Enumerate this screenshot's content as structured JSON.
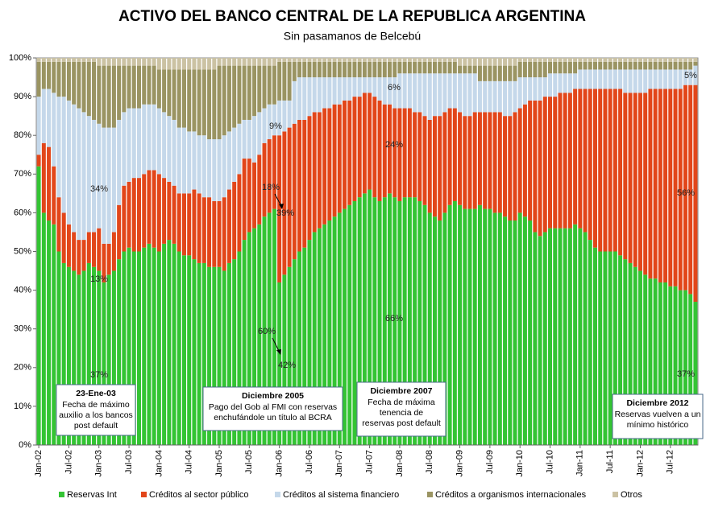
{
  "chart_data": {
    "type": "stacked_bar",
    "title": "ACTIVO DEL BANCO CENTRAL DE LA REPUBLICA ARGENTINA",
    "subtitle": "Sin pasamanos de Belcebú",
    "categories": [
      "Jan-02",
      null,
      null,
      null,
      null,
      null,
      "Jul-02",
      null,
      null,
      null,
      null,
      null,
      "Jan-03",
      null,
      null,
      null,
      null,
      null,
      "Jul-03",
      null,
      null,
      null,
      null,
      null,
      "Jan-04",
      null,
      null,
      null,
      null,
      null,
      "Jul-04",
      null,
      null,
      null,
      null,
      null,
      "Jan-05",
      null,
      null,
      null,
      null,
      null,
      "Jul-05",
      null,
      null,
      null,
      null,
      null,
      "Jan-06",
      null,
      null,
      null,
      null,
      null,
      "Jul-06",
      null,
      null,
      null,
      null,
      null,
      "Jan-07",
      null,
      null,
      null,
      null,
      null,
      "Jul-07",
      null,
      null,
      null,
      null,
      null,
      "Jan-08",
      null,
      null,
      null,
      null,
      null,
      "Jul-08",
      null,
      null,
      null,
      null,
      null,
      "Jan-09",
      null,
      null,
      null,
      null,
      null,
      "Jul-09",
      null,
      null,
      null,
      null,
      null,
      "Jan-10",
      null,
      null,
      null,
      null,
      null,
      "Jul-10",
      null,
      null,
      null,
      null,
      null,
      "Jan-11",
      null,
      null,
      null,
      null,
      null,
      "Jul-11",
      null,
      null,
      null,
      null,
      null,
      "Jan-12",
      null,
      null,
      null,
      null,
      null,
      "Jul-12",
      null,
      null,
      null,
      null,
      null
    ],
    "series": [
      {
        "name": "Reservas Int",
        "color": "#33c433",
        "values": [
          72,
          60,
          58,
          57,
          50,
          47,
          46,
          45,
          44,
          45,
          47,
          46,
          45,
          42,
          44,
          45,
          48,
          50,
          51,
          50,
          50,
          51,
          52,
          51,
          50,
          52,
          53,
          52,
          50,
          49,
          49,
          48,
          47,
          47,
          46,
          46,
          46,
          45,
          47,
          48,
          50,
          53,
          55,
          56,
          57,
          59,
          60,
          61,
          42,
          44,
          46,
          48,
          50,
          51,
          53,
          55,
          56,
          57,
          58,
          59,
          60,
          61,
          62,
          63,
          64,
          65,
          66,
          64,
          63,
          64,
          65,
          64,
          63,
          64,
          64,
          64,
          63,
          62,
          60,
          59,
          58,
          60,
          62,
          63,
          62,
          61,
          61,
          61,
          62,
          61,
          61,
          60,
          60,
          59,
          58,
          58,
          60,
          59,
          58,
          55,
          54,
          55,
          56,
          56,
          56,
          56,
          56,
          57,
          56,
          55,
          53,
          51,
          50,
          50,
          50,
          50,
          49,
          48,
          47,
          46,
          45,
          44,
          43,
          43,
          42,
          42,
          41,
          41,
          40,
          40,
          39,
          37
        ]
      },
      {
        "name": "Créditos al sector público",
        "color": "#e2461a",
        "values": [
          3,
          18,
          19,
          15,
          14,
          13,
          11,
          10,
          9,
          8,
          8,
          9,
          11,
          10,
          8,
          10,
          14,
          17,
          17,
          19,
          19,
          19,
          19,
          20,
          20,
          17,
          15,
          15,
          15,
          16,
          16,
          18,
          18,
          17,
          18,
          17,
          17,
          19,
          19,
          20,
          20,
          21,
          19,
          17,
          18,
          19,
          19,
          19,
          38,
          37,
          36,
          35,
          34,
          33,
          32,
          31,
          30,
          30,
          29,
          29,
          28,
          28,
          27,
          27,
          26,
          26,
          25,
          26,
          26,
          24,
          23,
          23,
          24,
          23,
          23,
          22,
          23,
          23,
          24,
          26,
          27,
          26,
          25,
          24,
          24,
          24,
          24,
          25,
          24,
          25,
          25,
          26,
          26,
          26,
          27,
          28,
          27,
          29,
          31,
          34,
          35,
          35,
          34,
          34,
          35,
          35,
          35,
          35,
          36,
          37,
          39,
          41,
          42,
          42,
          42,
          42,
          43,
          43,
          44,
          45,
          46,
          47,
          49,
          49,
          50,
          50,
          51,
          51,
          52,
          53,
          54,
          56
        ]
      },
      {
        "name": "Créditos al sistema financiero",
        "color": "#c5d8ea",
        "values": [
          15,
          14,
          15,
          19,
          26,
          30,
          32,
          33,
          34,
          33,
          30,
          29,
          27,
          30,
          30,
          27,
          22,
          19,
          19,
          18,
          18,
          18,
          17,
          17,
          17,
          17,
          17,
          17,
          17,
          17,
          16,
          15,
          15,
          16,
          15,
          16,
          16,
          16,
          15,
          14,
          13,
          10,
          10,
          12,
          11,
          9,
          9,
          8,
          9,
          8,
          7,
          11,
          11,
          11,
          10,
          9,
          9,
          8,
          8,
          7,
          7,
          6,
          6,
          5,
          5,
          4,
          4,
          5,
          6,
          7,
          7,
          8,
          9,
          9,
          9,
          10,
          10,
          11,
          12,
          11,
          11,
          10,
          9,
          9,
          10,
          11,
          11,
          10,
          8,
          8,
          8,
          8,
          8,
          9,
          9,
          8,
          8,
          7,
          6,
          6,
          6,
          5,
          6,
          6,
          5,
          5,
          5,
          4,
          5,
          5,
          5,
          5,
          5,
          5,
          5,
          5,
          5,
          6,
          6,
          6,
          6,
          6,
          5,
          5,
          5,
          5,
          5,
          5,
          5,
          4,
          4,
          5
        ]
      },
      {
        "name": "Créditos a organismos internacionales",
        "color": "#9a9462",
        "values": [
          9,
          7,
          7,
          8,
          9,
          9,
          10,
          11,
          12,
          13,
          14,
          15,
          15,
          16,
          16,
          16,
          14,
          12,
          11,
          11,
          11,
          10,
          10,
          10,
          10,
          11,
          12,
          13,
          15,
          15,
          16,
          16,
          17,
          17,
          18,
          18,
          19,
          18,
          17,
          16,
          15,
          14,
          14,
          13,
          12,
          11,
          10,
          10,
          10,
          10,
          10,
          5,
          4,
          4,
          4,
          4,
          4,
          4,
          4,
          4,
          4,
          4,
          4,
          4,
          4,
          4,
          4,
          4,
          4,
          4,
          4,
          4,
          3,
          3,
          3,
          3,
          3,
          3,
          3,
          3,
          3,
          3,
          3,
          3,
          2,
          2,
          2,
          2,
          4,
          4,
          4,
          4,
          4,
          4,
          4,
          4,
          4,
          4,
          4,
          4,
          4,
          4,
          3,
          3,
          3,
          3,
          3,
          3,
          2,
          2,
          2,
          2,
          2,
          2,
          2,
          2,
          2,
          2,
          2,
          2,
          2,
          2,
          2,
          2,
          2,
          2,
          2,
          2,
          2,
          2,
          2,
          1
        ]
      },
      {
        "name": "Otros",
        "color": "#cbc2a3",
        "values": [
          1,
          1,
          1,
          1,
          1,
          1,
          1,
          1,
          1,
          1,
          1,
          1,
          2,
          2,
          2,
          2,
          2,
          2,
          2,
          2,
          2,
          2,
          2,
          2,
          3,
          3,
          3,
          3,
          3,
          3,
          3,
          3,
          3,
          3,
          3,
          3,
          2,
          2,
          2,
          2,
          2,
          2,
          2,
          2,
          2,
          2,
          2,
          2,
          1,
          1,
          1,
          1,
          1,
          1,
          1,
          1,
          1,
          1,
          1,
          1,
          1,
          1,
          1,
          1,
          1,
          1,
          1,
          1,
          1,
          1,
          1,
          1,
          1,
          1,
          1,
          1,
          1,
          1,
          1,
          1,
          1,
          1,
          1,
          1,
          2,
          2,
          2,
          2,
          2,
          2,
          2,
          2,
          2,
          2,
          2,
          2,
          1,
          1,
          1,
          1,
          1,
          1,
          1,
          1,
          1,
          1,
          1,
          1,
          1,
          1,
          1,
          1,
          1,
          1,
          1,
          1,
          1,
          1,
          1,
          1,
          1,
          1,
          1,
          1,
          1,
          1,
          1,
          1,
          1,
          1,
          1,
          1
        ]
      }
    ],
    "ylim": [
      0,
      100
    ],
    "yticks": [
      {
        "value": 0,
        "label": "0%"
      },
      {
        "value": 10,
        "label": "10%"
      },
      {
        "value": 20,
        "label": "20%"
      },
      {
        "value": 30,
        "label": "30%"
      },
      {
        "value": 40,
        "label": "40%"
      },
      {
        "value": 50,
        "label": "50%"
      },
      {
        "value": 60,
        "label": "60%"
      },
      {
        "value": 70,
        "label": "70%"
      },
      {
        "value": 80,
        "label": "80%"
      },
      {
        "value": 90,
        "label": "90%"
      },
      {
        "value": 100,
        "label": "100%"
      }
    ],
    "annotations": [
      "34%",
      "13%",
      "37%",
      "9%",
      "18%",
      "39%",
      "60%",
      "42%",
      "6%",
      "24%",
      "66%",
      "5%",
      "56%",
      "37%"
    ],
    "callouts": [
      {
        "title": "23-Ene-03",
        "lines": [
          "Fecha de máximo",
          "auxilio a los bancos",
          "post default"
        ]
      },
      {
        "title": "Diciembre 2005",
        "lines": [
          "Pago del Gob al FMI con reservas",
          "enchufándole un título al BCRA"
        ]
      },
      {
        "title": "Diciembre 2007",
        "lines": [
          "Fecha de máxima",
          "tenencia de",
          "reservas post default"
        ]
      },
      {
        "title": "Diciembre 2012",
        "lines": [
          "Reservas vuelven a un",
          "mínimo histórico"
        ]
      }
    ],
    "legend": "bottom"
  }
}
